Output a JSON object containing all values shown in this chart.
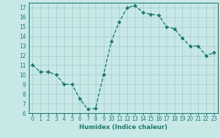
{
  "x": [
    0,
    1,
    2,
    3,
    4,
    5,
    6,
    7,
    8,
    9,
    10,
    11,
    12,
    13,
    14,
    15,
    16,
    17,
    18,
    19,
    20,
    21,
    22,
    23
  ],
  "y": [
    11.0,
    10.3,
    10.3,
    10.0,
    9.0,
    9.0,
    7.5,
    6.4,
    6.5,
    10.0,
    13.5,
    15.5,
    17.0,
    17.2,
    16.5,
    16.3,
    16.2,
    15.0,
    14.8,
    13.8,
    13.0,
    13.0,
    12.0,
    12.3
  ],
  "line_color": "#1a7a6a",
  "marker": "D",
  "marker_size": 2.5,
  "bg_color": "#c8e8e8",
  "grid_color": "#a0c8c8",
  "xlabel": "Humidex (Indice chaleur)",
  "ylim": [
    6,
    17.5
  ],
  "xlim": [
    -0.5,
    23.5
  ],
  "yticks": [
    6,
    7,
    8,
    9,
    10,
    11,
    12,
    13,
    14,
    15,
    16,
    17
  ],
  "xticks": [
    0,
    1,
    2,
    3,
    4,
    5,
    6,
    7,
    8,
    9,
    10,
    11,
    12,
    13,
    14,
    15,
    16,
    17,
    18,
    19,
    20,
    21,
    22,
    23
  ],
  "tick_label_fontsize": 5.5,
  "xlabel_fontsize": 6.5,
  "linewidth": 1.0
}
